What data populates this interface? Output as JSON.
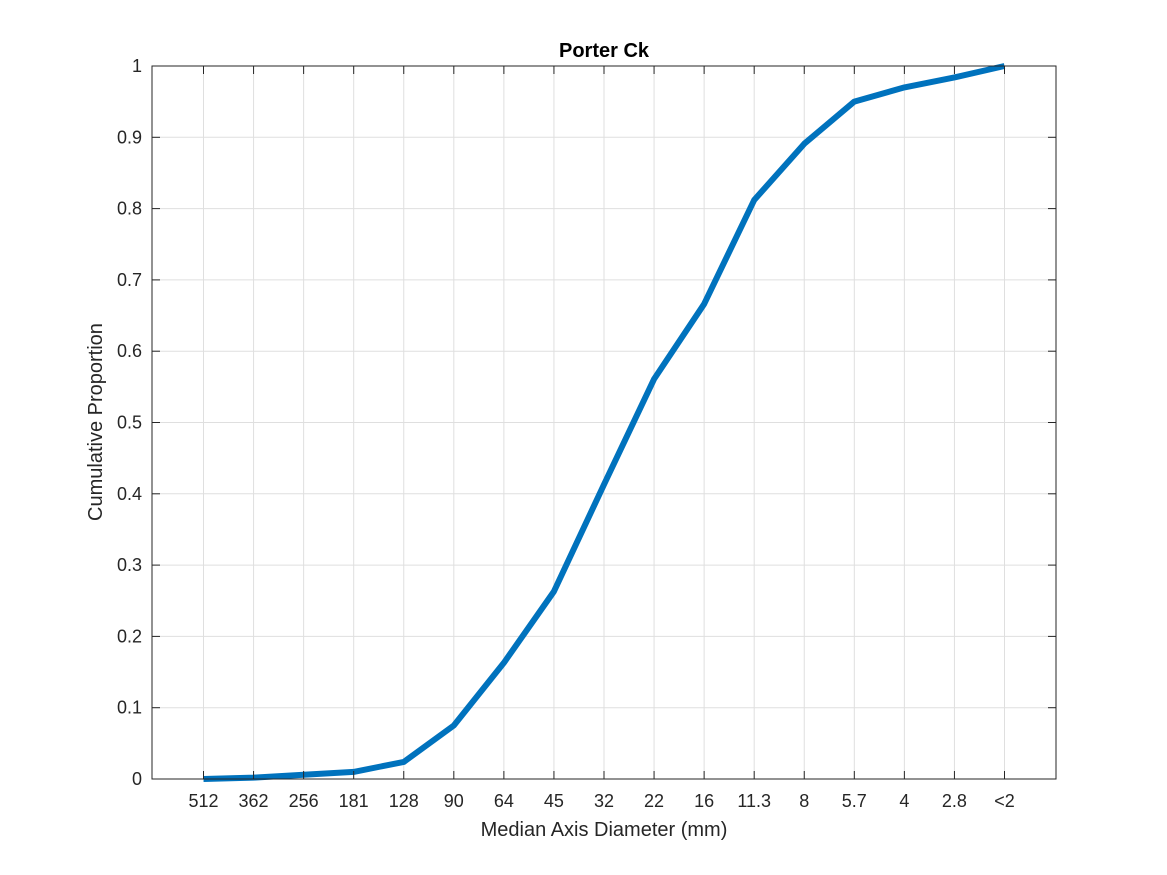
{
  "chart_data": {
    "type": "line",
    "title": "Porter Ck",
    "xlabel": "Median Axis Diameter (mm)",
    "ylabel": "Cumulative Proportion",
    "categories": [
      "512",
      "362",
      "256",
      "181",
      "128",
      "90",
      "64",
      "45",
      "32",
      "22",
      "16",
      "11.3",
      "8",
      "5.7",
      "4",
      "2.8",
      "<2"
    ],
    "series": [
      {
        "values": [
          0.0,
          0.002,
          0.006,
          0.01,
          0.024,
          0.075,
          0.163,
          0.263,
          0.413,
          0.561,
          0.666,
          0.812,
          0.891,
          0.95,
          0.97,
          0.984,
          1.0
        ],
        "color": "#0072BD"
      }
    ],
    "ylim": [
      0,
      1
    ],
    "yticks": [
      "0",
      "0.1",
      "0.2",
      "0.3",
      "0.4",
      "0.5",
      "0.6",
      "0.7",
      "0.8",
      "0.9",
      "1"
    ],
    "grid": true,
    "legend": "none"
  }
}
